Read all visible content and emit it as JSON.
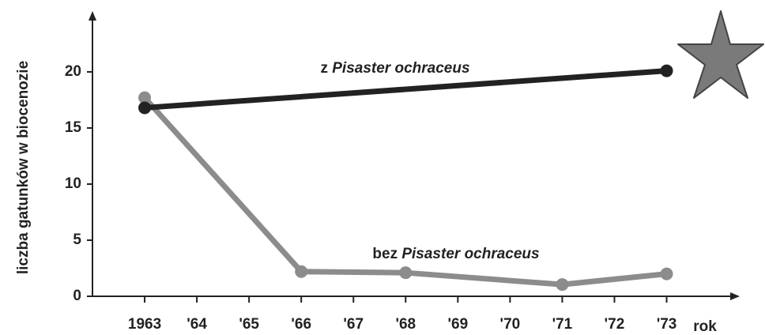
{
  "chart_data": {
    "type": "line",
    "y_label": "liczba gatunków w biocenozie",
    "x_label": "rok",
    "xlim": [
      1962,
      1974.4
    ],
    "xticks": [
      {
        "value": 1963,
        "label": "1963"
      },
      {
        "value": 1964,
        "label": "'64"
      },
      {
        "value": 1965,
        "label": "'65"
      },
      {
        "value": 1966,
        "label": "'66"
      },
      {
        "value": 1967,
        "label": "'67"
      },
      {
        "value": 1968,
        "label": "'68"
      },
      {
        "value": 1969,
        "label": "'69"
      },
      {
        "value": 1970,
        "label": "'70"
      },
      {
        "value": 1971,
        "label": "'71"
      },
      {
        "value": 1972,
        "label": "'72"
      },
      {
        "value": 1973,
        "label": "'73"
      }
    ],
    "ylim": [
      0,
      25
    ],
    "yticks": [
      0,
      5,
      10,
      15,
      20
    ],
    "series": [
      {
        "name": "z Pisaster ochraceus",
        "color": "#222222",
        "x": [
          1963,
          1973
        ],
        "values": [
          16.8,
          20.1
        ]
      },
      {
        "name": "bez Pisaster ochraceus",
        "color": "#8c8c8c",
        "x": [
          1963,
          1966,
          1968,
          1971,
          1973
        ],
        "values": [
          17.7,
          2.2,
          2.1,
          1.05,
          2.0
        ]
      }
    ]
  }
}
